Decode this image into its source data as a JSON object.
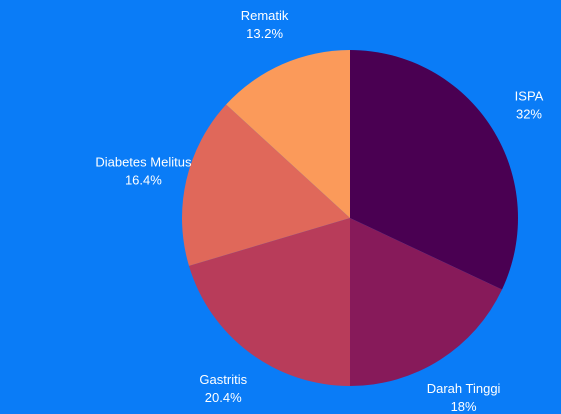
{
  "chart_data": {
    "type": "pie",
    "slices": [
      {
        "label": "ISPA",
        "value_label": "32%",
        "value": 32.0,
        "color": "#4a0052"
      },
      {
        "label": "Darah Tinggi",
        "value_label": "18%",
        "value": 18.0,
        "color": "#871a5a"
      },
      {
        "label": "Gastritis",
        "value_label": "20.4%",
        "value": 20.4,
        "color": "#b83c5a"
      },
      {
        "label": "Diabetes Melitus",
        "value_label": "16.4%",
        "value": 16.4,
        "color": "#e0685a"
      },
      {
        "label": "Rematik",
        "value_label": "13.2%",
        "value": 13.2,
        "color": "#fb9a5a"
      }
    ],
    "start_angle_deg": 0,
    "direction": "clockwise",
    "background": "#0a7cf7"
  }
}
